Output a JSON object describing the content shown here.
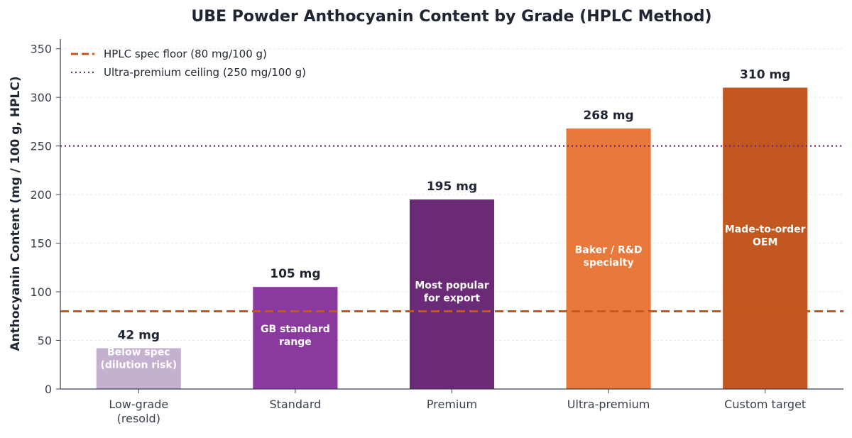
{
  "chart_data": {
    "type": "bar",
    "title": "UBE Powder Anthocyanin Content by Grade (HPLC Method)",
    "xlabel": "",
    "ylabel": "Anthocyanin Content (mg / 100 g, HPLC)",
    "ylim": [
      0,
      360
    ],
    "yticks": [
      0,
      50,
      100,
      150,
      200,
      250,
      300,
      350
    ],
    "grid": true,
    "legend_position": "top-left",
    "categories": [
      [
        "Low-grade",
        "(resold)"
      ],
      [
        "Standard"
      ],
      [
        "Premium"
      ],
      [
        "Ultra-premium"
      ],
      [
        "Custom target"
      ]
    ],
    "values": [
      42,
      105,
      195,
      268,
      310
    ],
    "value_labels": [
      "42 mg",
      "105 mg",
      "195 mg",
      "268 mg",
      "310 mg"
    ],
    "bar_notes": [
      [
        "Below spec",
        "(dilution risk)"
      ],
      [
        "GB standard",
        "range"
      ],
      [
        "Most popular",
        "for export"
      ],
      [
        "Baker / R&D",
        "specialty"
      ],
      [
        "Made-to-order",
        "OEM"
      ]
    ],
    "bar_colors": [
      "#c4b0cf",
      "#8a3a9e",
      "#6a2a76",
      "#e8793a",
      "#c2571f"
    ],
    "reference_lines": [
      {
        "name": "HPLC spec floor (80 mg/100 g)",
        "value": 80,
        "style": "dashed",
        "color": "#c8571e"
      },
      {
        "name": "Ultra-premium ceiling (250 mg/100 g)",
        "value": 250,
        "style": "dotted",
        "color": "#6a2a76"
      }
    ]
  }
}
